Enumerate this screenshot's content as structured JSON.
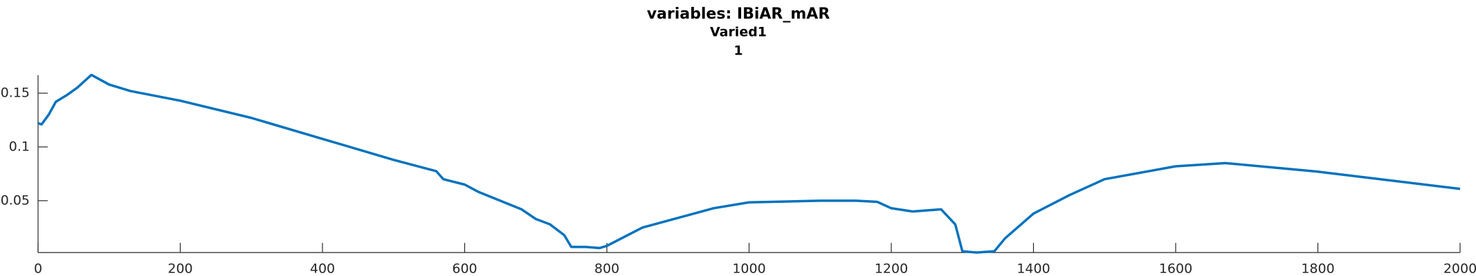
{
  "chart_data": {
    "type": "line",
    "title": "variables: IBiAR_mAR",
    "subtitle": "Varied1",
    "subtitle2": "1",
    "xlim": [
      0,
      2000
    ],
    "ylim": [
      0.0018,
      0.1667
    ],
    "xticks": [
      0,
      200,
      400,
      600,
      800,
      1000,
      1200,
      1400,
      1600,
      1800,
      2000
    ],
    "yticks": [
      0.05,
      0.1,
      0.15
    ],
    "series": [
      {
        "color": "#0072bd",
        "x": [
          0,
          5,
          15,
          25,
          40,
          55,
          75,
          100,
          130,
          200,
          300,
          400,
          500,
          560,
          570,
          600,
          620,
          650,
          680,
          700,
          720,
          740,
          750,
          770,
          790,
          800,
          850,
          900,
          950,
          1000,
          1100,
          1150,
          1180,
          1200,
          1230,
          1270,
          1290,
          1300,
          1320,
          1345,
          1360,
          1400,
          1450,
          1500,
          1600,
          1670,
          1800,
          1900,
          2000
        ],
        "values": [
          0.122,
          0.121,
          0.13,
          0.142,
          0.148,
          0.155,
          0.167,
          0.158,
          0.152,
          0.143,
          0.127,
          0.1075,
          0.088,
          0.0775,
          0.07,
          0.065,
          0.058,
          0.05,
          0.042,
          0.033,
          0.028,
          0.018,
          0.007,
          0.007,
          0.006,
          0.008,
          0.025,
          0.034,
          0.043,
          0.0485,
          0.05,
          0.05,
          0.049,
          0.043,
          0.04,
          0.042,
          0.028,
          0.003,
          0.0018,
          0.003,
          0.015,
          0.038,
          0.055,
          0.07,
          0.082,
          0.085,
          0.077,
          0.069,
          0.061
        ]
      }
    ]
  }
}
